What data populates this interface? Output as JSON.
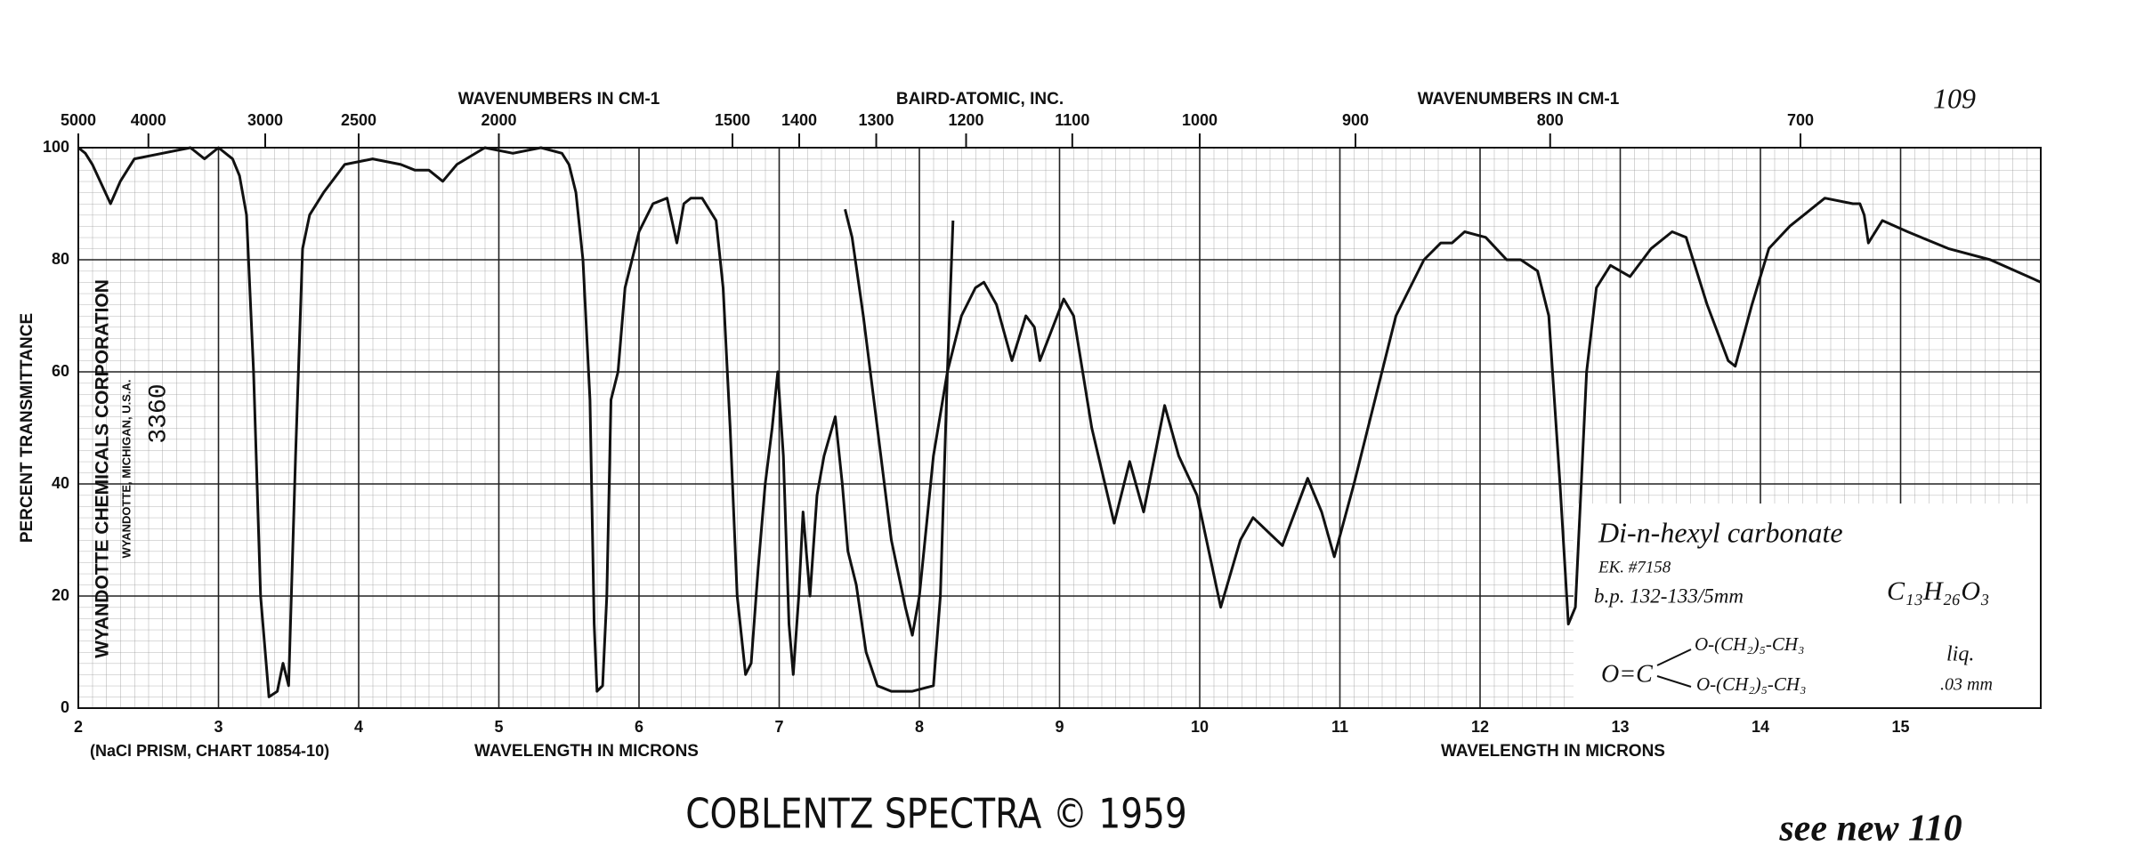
{
  "chart_data": {
    "type": "line",
    "xlabel": "WAVELENGTH IN MICRONS",
    "ylabel": "PERCENT TRANSMITTANCE",
    "x2label": "WAVENUMBERS IN CM-1",
    "publisher": "BAIRD-ATOMIC, INC.",
    "page_number": "109",
    "company": "WYANDOTTE CHEMICALS CORPORATION",
    "company_location": "WYANDOTTE, MICHIGAN, U.S.A.",
    "sample_number": "3360",
    "prism_note": "(NaCl PRISM, CHART 10854-10)",
    "footer": "COBLENTZ SPECTRA © 1959",
    "handwritten_note": "see new 110",
    "compound": {
      "name": "Di-n-hexyl carbonate",
      "ek_number": "EK. #7158",
      "boiling_point": "b.p. 132-133/5mm",
      "formula": "C₁₃H₂₆O₃",
      "structure_core": "O=C",
      "structure_chain_1": "O-(CH₂)₅-CH₃",
      "structure_chain_2": "O-(CH₂)₅-CH₃",
      "state": "liq.",
      "thickness": ".03 mm"
    },
    "xlim": [
      2,
      16
    ],
    "ylim": [
      0,
      100
    ],
    "xticks": [
      2,
      3,
      4,
      5,
      6,
      7,
      8,
      9,
      10,
      11,
      12,
      13,
      14,
      15
    ],
    "yticks": [
      0,
      20,
      40,
      60,
      80,
      100
    ],
    "x2scale": "reciprocal",
    "x2ticks": [
      5000,
      4000,
      3000,
      2500,
      2000,
      1500,
      1400,
      1300,
      1200,
      1100,
      1000,
      900,
      800,
      700
    ],
    "grid": true,
    "series": [
      {
        "color": "#111111",
        "x": [
          2.0,
          2.05,
          2.1,
          2.23,
          2.3,
          2.4,
          2.6,
          2.8,
          2.9,
          3.0,
          3.1,
          3.15,
          3.2,
          3.25,
          3.3,
          3.36,
          3.42,
          3.46,
          3.5,
          3.55,
          3.6,
          3.65,
          3.75,
          3.9,
          4.1,
          4.3,
          4.4,
          4.5,
          4.6,
          4.7,
          4.9,
          5.1,
          5.3,
          5.45,
          5.5,
          5.55,
          5.6,
          5.65,
          5.68,
          5.7,
          5.74,
          5.77,
          5.8,
          5.85,
          5.9,
          6.0,
          6.1,
          6.2,
          6.27,
          6.32,
          6.37,
          6.45,
          6.55,
          6.6,
          6.65,
          6.7,
          6.76,
          6.8,
          6.85,
          6.9,
          6.95,
          6.99,
          7.03,
          7.07,
          7.1,
          7.14,
          7.17,
          7.22,
          7.27,
          7.32,
          7.4,
          7.45,
          7.49,
          7.55,
          7.62,
          7.7,
          7.8,
          7.95,
          8.1,
          8.15,
          8.2,
          8.24
        ],
        "values": [
          100,
          99,
          97,
          90,
          94,
          98,
          99,
          100,
          98,
          100,
          98,
          95,
          88,
          60,
          20,
          2,
          3,
          8,
          4,
          45,
          82,
          88,
          92,
          97,
          98,
          97,
          96,
          96,
          94,
          97,
          100,
          99,
          100,
          99,
          97,
          92,
          80,
          55,
          15,
          3,
          4,
          20,
          55,
          60,
          75,
          85,
          90,
          91,
          83,
          90,
          91,
          91,
          87,
          75,
          50,
          20,
          6,
          8,
          25,
          40,
          50,
          60,
          45,
          15,
          6,
          20,
          35,
          20,
          38,
          45,
          52,
          40,
          28,
          22,
          10,
          4,
          3,
          3,
          4,
          20,
          60,
          87
        ]
      },
      {
        "color": "#111111",
        "x": [
          7.47,
          7.52,
          7.6,
          7.7,
          7.8,
          7.9,
          7.95,
          8.0,
          8.1,
          8.2,
          8.3,
          8.4,
          8.46,
          8.55,
          8.66,
          8.76,
          8.82,
          8.86,
          9.03,
          9.1,
          9.23,
          9.39,
          9.5,
          9.6,
          9.75,
          9.85,
          9.98,
          10.15,
          10.29,
          10.38,
          10.59,
          10.77,
          10.87,
          10.96,
          11.1,
          11.25,
          11.4,
          11.6,
          11.72,
          11.8,
          11.89,
          12.04,
          12.19,
          12.29,
          12.41,
          12.49,
          12.57,
          12.63,
          12.68,
          12.76,
          12.83,
          12.93,
          13.07,
          13.22,
          13.37,
          13.47,
          13.62,
          13.77,
          13.82,
          13.94,
          14.06,
          14.21,
          14.46,
          14.66,
          14.71,
          14.74,
          14.77,
          14.87,
          15.05,
          15.34,
          15.64,
          16.0
        ],
        "values": [
          89,
          84,
          70,
          50,
          30,
          18,
          13,
          20,
          45,
          60,
          70,
          75,
          76,
          72,
          62,
          70,
          68,
          62,
          73,
          70,
          50,
          33,
          44,
          35,
          54,
          45,
          38,
          18,
          30,
          34,
          29,
          41,
          35,
          27,
          40,
          55,
          70,
          80,
          83,
          83,
          85,
          84,
          80,
          80,
          78,
          70,
          40,
          15,
          18,
          60,
          75,
          79,
          77,
          82,
          85,
          84,
          72,
          62,
          61,
          72,
          82,
          86,
          91,
          90,
          90,
          88,
          83,
          87,
          85,
          82,
          80,
          76
        ]
      }
    ]
  }
}
